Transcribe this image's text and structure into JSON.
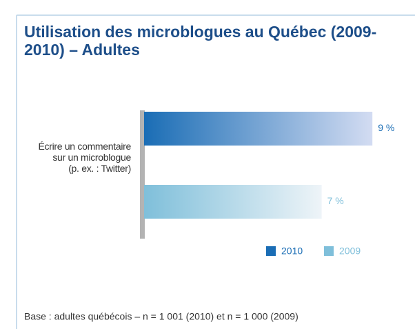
{
  "chart_data": {
    "type": "bar",
    "orientation": "horizontal",
    "title": "Utilisation des microblogues au Québec (2009-2010) – Adultes",
    "categories": [
      "Écrire un commentaire\nsur un microblogue\n(p. ex. : Twitter)"
    ],
    "series": [
      {
        "name": "2010",
        "color": "#1a6db5",
        "values": [
          9
        ],
        "value_labels": [
          "9 %"
        ]
      },
      {
        "name": "2009",
        "color": "#7fbfda",
        "values": [
          7
        ],
        "value_labels": [
          "7 %"
        ]
      }
    ],
    "legend": "bottom-right",
    "footnote": "Base : adultes québécois – n = 1 001 (2010) et n = 1 000 (2009)"
  }
}
